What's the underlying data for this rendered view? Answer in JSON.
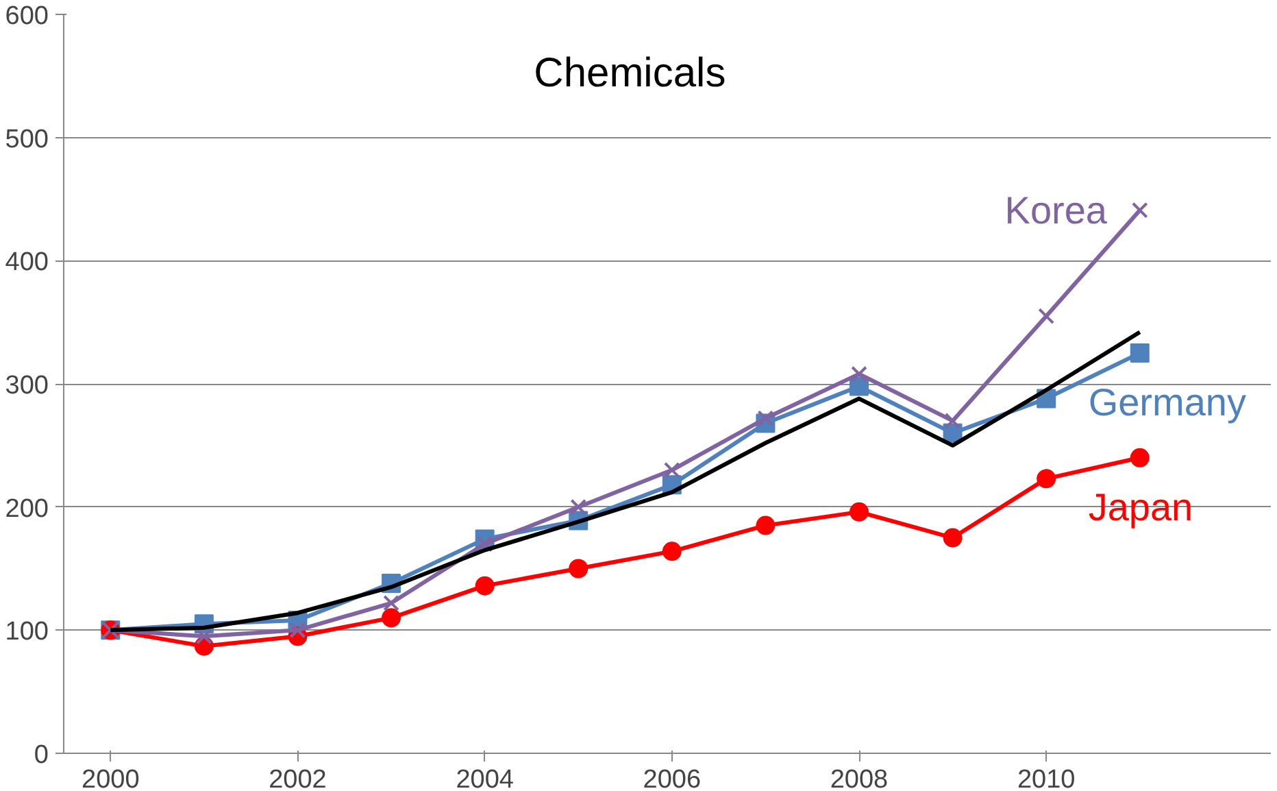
{
  "chart_data": {
    "type": "line",
    "title": "Chemicals",
    "x": [
      2000,
      2001,
      2002,
      2003,
      2004,
      2005,
      2006,
      2007,
      2008,
      2009,
      2010,
      2011
    ],
    "xlim": [
      1999.5,
      2012.4
    ],
    "xticks": [
      2000,
      2002,
      2004,
      2006,
      2008,
      2010
    ],
    "ylim": [
      0,
      600
    ],
    "yticks": [
      0,
      100,
      200,
      300,
      400,
      500,
      600
    ],
    "grid": "y",
    "series": [
      {
        "name": "Germany",
        "color": "#4f81bd",
        "marker": "square",
        "values": [
          100,
          105,
          108,
          138,
          174,
          189,
          218,
          268,
          298,
          260,
          288,
          325
        ]
      },
      {
        "name": "Japan",
        "color": "#ff0000",
        "marker": "circle",
        "values": [
          100,
          87,
          95,
          110,
          136,
          150,
          164,
          185,
          196,
          175,
          223,
          240
        ]
      },
      {
        "name": "Korea",
        "color": "#8064a2",
        "marker": "cross",
        "values": [
          100,
          95,
          100,
          122,
          170,
          200,
          230,
          272,
          308,
          270,
          355,
          441
        ]
      },
      {
        "color": "#000000",
        "marker": "none",
        "values": [
          100,
          102,
          114,
          135,
          165,
          188,
          212,
          252,
          288,
          250,
          295,
          342
        ]
      }
    ]
  }
}
